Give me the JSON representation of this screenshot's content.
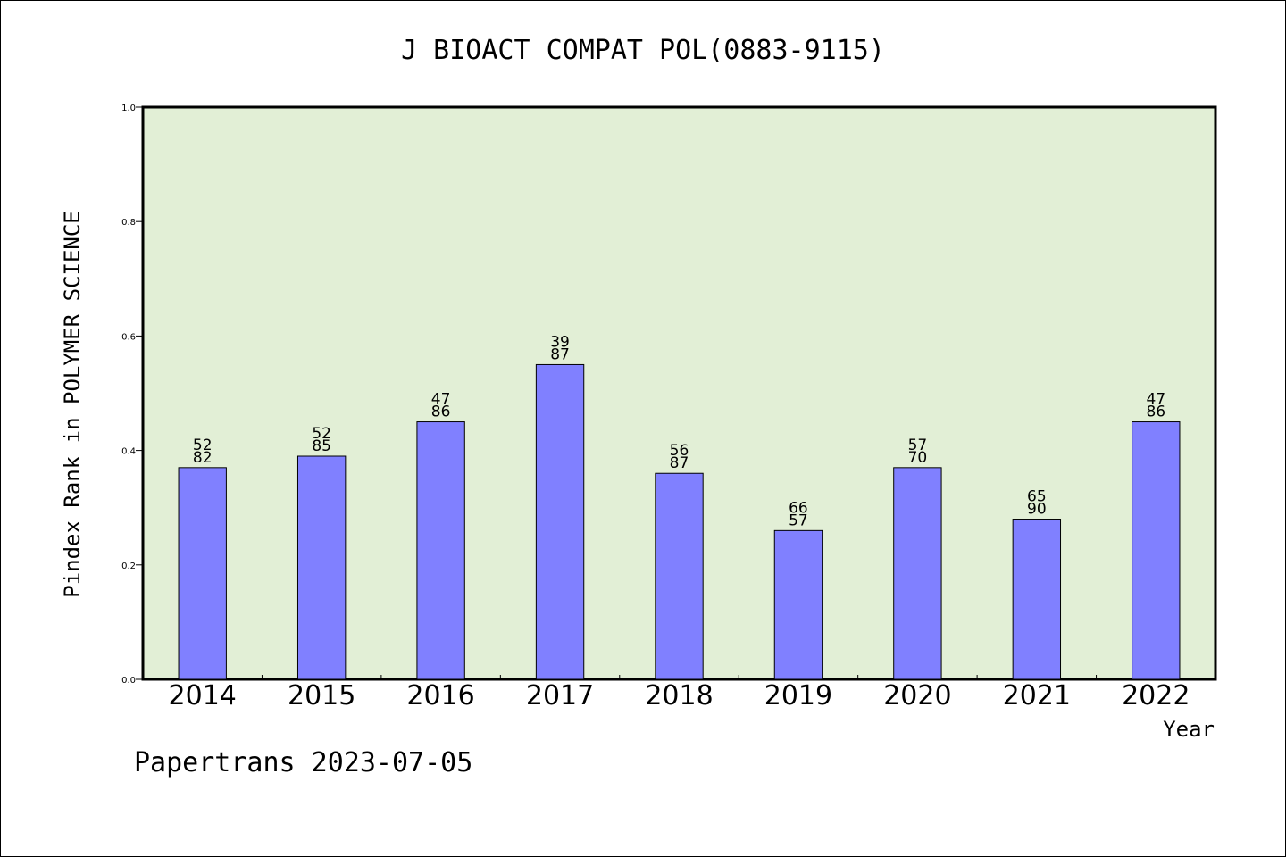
{
  "chart_data": {
    "type": "bar",
    "title": "J BIOACT COMPAT POL(0883-9115)",
    "xlabel": "Year",
    "ylabel": "Pindex Rank in POLYMER SCIENCE",
    "categories": [
      "2014",
      "2015",
      "2016",
      "2017",
      "2018",
      "2019",
      "2020",
      "2021",
      "2022"
    ],
    "values": [
      0.37,
      0.39,
      0.45,
      0.55,
      0.36,
      0.26,
      0.37,
      0.28,
      0.45
    ],
    "labels": [
      [
        "52",
        "82"
      ],
      [
        "52",
        "85"
      ],
      [
        "47",
        "86"
      ],
      [
        "39",
        "87"
      ],
      [
        "56",
        "87"
      ],
      [
        "66",
        "57"
      ],
      [
        "57",
        "70"
      ],
      [
        "65",
        "90"
      ],
      [
        "47",
        "86"
      ]
    ],
    "ylim": [
      0,
      1.0
    ],
    "yticks": [
      "0.0",
      "0.2",
      "0.4",
      "0.6",
      "0.8",
      "1.0"
    ],
    "colors": {
      "bar": "#8080ff",
      "plot_background": "#e2efd6",
      "axis": "#000000"
    },
    "grid": false,
    "legend": "none"
  },
  "footer": "Papertrans 2023-07-05"
}
